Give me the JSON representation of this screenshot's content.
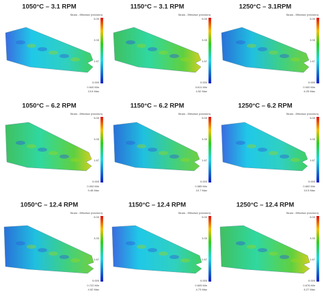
{
  "panels": [
    {
      "title": "1050°C – 3.1 RPM",
      "colorbar_label": "Strain - Effective (mm/mm)",
      "ticks": [
        "5.00",
        "3.33",
        "1.67",
        "0.000"
      ],
      "min": "0.640 Min",
      "max": "13.6 Max"
    },
    {
      "title": "1150°C – 3.1 RPM",
      "colorbar_label": "Strain - Effective (mm/mm)",
      "ticks": [
        "5.00",
        "3.33",
        "1.67",
        "0.000"
      ],
      "min": "0.611 Min",
      "max": "4.52 Max"
    },
    {
      "title": "1250°C – 3.1RPM",
      "colorbar_label": "Strain - Effective (mm/mm)",
      "ticks": [
        "5.00",
        "3.33",
        "1.67",
        "0.000"
      ],
      "min": "0.000 Min",
      "max": "6.25 Max"
    },
    {
      "title": "1050°C – 6.2 RPM",
      "colorbar_label": "Strain - Effective (mm/mm)",
      "ticks": [
        "5.00",
        "3.33",
        "1.67",
        "0.000"
      ],
      "min": "0.000 Min",
      "max": "9.48 Max"
    },
    {
      "title": "1150°C – 6.2 RPM",
      "colorbar_label": "Strain - Effective (mm/mm)",
      "ticks": [
        "5.00",
        "3.33",
        "1.67",
        "0.000"
      ],
      "min": "0.585 Min",
      "max": "10.7 Max"
    },
    {
      "title": "1250°C – 6.2 RPM",
      "colorbar_label": "Strain - Effective (mm/mm)",
      "ticks": [
        "5.00",
        "3.33",
        "1.67",
        "0.000"
      ],
      "min": "0.652 Min",
      "max": "10.5 Max"
    },
    {
      "title": "1050°C – 12.4 RPM",
      "colorbar_label": "Strain - Effective (mm/mm)",
      "ticks": [
        "5.00",
        "3.33",
        "1.67",
        "0.000"
      ],
      "min": "0.722 Min",
      "max": "4.52 Max"
    },
    {
      "title": "1150°C – 12.4 RPM",
      "colorbar_label": "Strain - Effective (mm/mm)",
      "ticks": [
        "5.00",
        "3.33",
        "1.67",
        "0.000"
      ],
      "min": "0.605 Min",
      "max": "4.73 Max"
    },
    {
      "title": "1250°C – 12.4 RPM",
      "colorbar_label": "Strain - Effective (mm/mm)",
      "ticks": [
        "5.00",
        "3.33",
        "1.67",
        "0.000"
      ],
      "min": "0.676 Min",
      "max": "6.27 Max"
    }
  ]
}
